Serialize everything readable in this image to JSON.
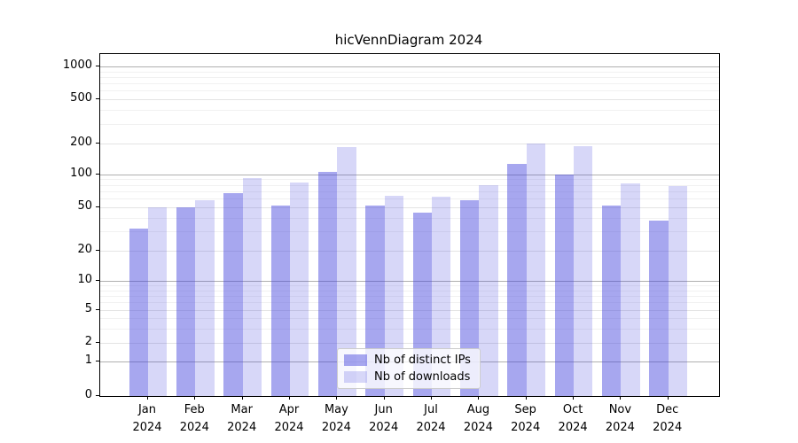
{
  "chart_data": {
    "type": "bar",
    "title": "hicVennDiagram 2024",
    "year": "2024",
    "months": [
      "Jan",
      "Feb",
      "Mar",
      "Apr",
      "May",
      "Jun",
      "Jul",
      "Aug",
      "Sep",
      "Oct",
      "Nov",
      "Dec"
    ],
    "categories": [
      "Jan 2024",
      "Feb 2024",
      "Mar 2024",
      "Apr 2024",
      "May 2024",
      "Jun 2024",
      "Jul 2024",
      "Aug 2024",
      "Sep 2024",
      "Oct 2024",
      "Nov 2024",
      "Dec 2024"
    ],
    "series": [
      {
        "name": "Nb of distinct IPs",
        "color": "rgba(68,68,221,0.47)",
        "values": [
          32,
          50,
          67,
          52,
          105,
          52,
          45,
          58,
          125,
          100,
          52,
          38
        ]
      },
      {
        "name": "Nb of downloads",
        "color": "rgba(68,68,221,0.21)",
        "values": [
          50,
          58,
          92,
          84,
          183,
          64,
          62,
          79,
          200,
          185,
          82,
          78
        ]
      }
    ],
    "yscale": "symlog",
    "ytick_values": [
      0,
      1,
      2,
      5,
      10,
      20,
      50,
      100,
      200,
      500,
      1000
    ],
    "minor_tick_values": [
      3,
      4,
      6,
      7,
      8,
      9,
      30,
      40,
      60,
      70,
      80,
      90,
      300,
      400,
      600,
      700,
      800,
      900
    ],
    "dark_gridline_values": [
      1,
      10,
      100,
      1000
    ],
    "ylim": [
      0,
      1450
    ],
    "grid": true,
    "legend_position": "lower center",
    "xlabel": "",
    "ylabel": ""
  },
  "colors": {
    "bar_dark_flat": "#a7a7f0",
    "bar_light_flat": "#d8d8f8",
    "grid_dark": "#b0b0b0",
    "grid_major": "#e4e4e4",
    "grid_minor": "#f1f1f1"
  }
}
